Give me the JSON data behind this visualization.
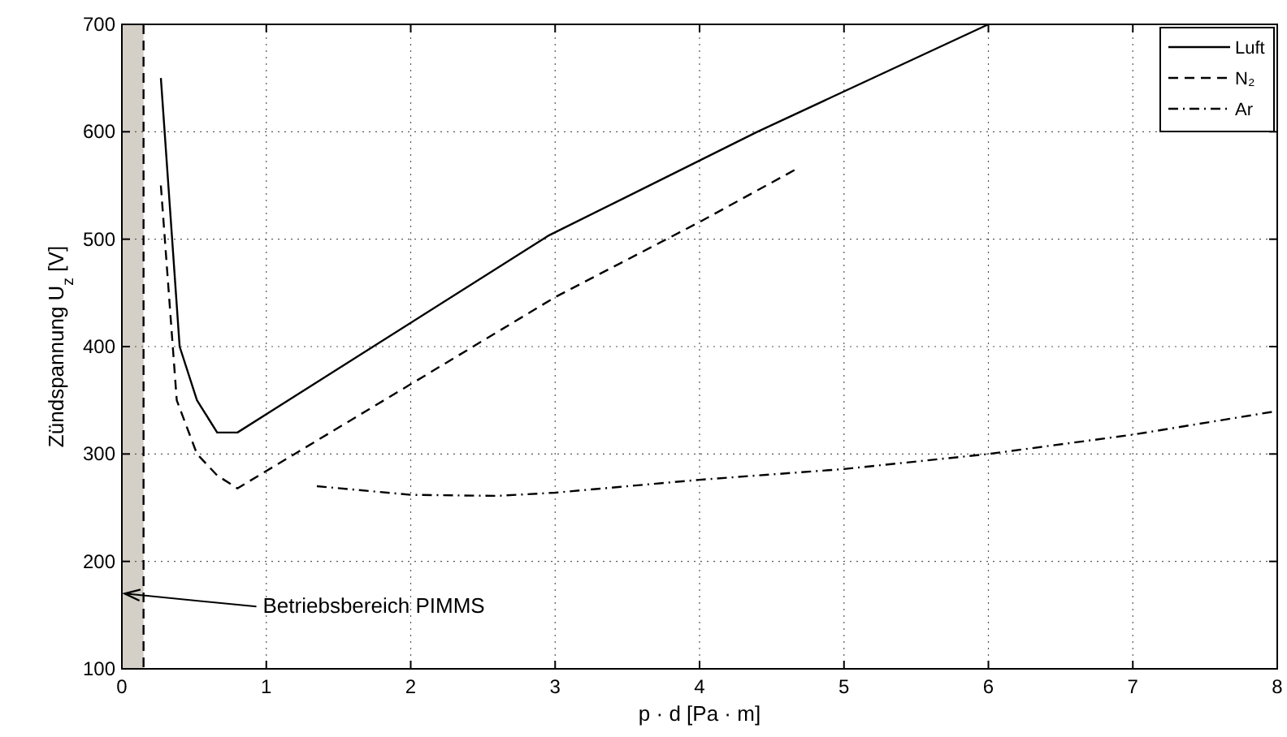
{
  "chart_data": {
    "type": "line",
    "xlabel": "p · d [Pa · m]",
    "ylabel": "Zündspannung U$_{z}$ [V]",
    "xlim": [
      0,
      8
    ],
    "ylim": [
      100,
      700
    ],
    "xticks": [
      0,
      1,
      2,
      3,
      4,
      5,
      6,
      7,
      8
    ],
    "yticks": [
      100,
      200,
      300,
      400,
      500,
      600,
      700
    ],
    "grid": true,
    "legend": "top right",
    "marker": "none",
    "series": [
      {
        "name": "Luft",
        "color": "#000000",
        "line_style": "solid",
        "x": [
          0.27,
          0.4,
          0.52,
          0.66,
          0.8,
          2.95,
          4.4,
          6
        ],
        "values": [
          650,
          400,
          350,
          320,
          320,
          503,
          600,
          700
        ]
      },
      {
        "name": "N₂",
        "color": "#000000",
        "line_style": "dashed",
        "x": [
          0.27,
          0.38,
          0.52,
          0.66,
          0.8,
          2,
          3,
          4,
          4.68
        ],
        "values": [
          550,
          350,
          300,
          280,
          268,
          365,
          446,
          516,
          566
        ]
      },
      {
        "name": "Ar",
        "color": "#000000",
        "line_style": "dashdot",
        "x": [
          1.35,
          2,
          2.6,
          3,
          4,
          5,
          6,
          7,
          8
        ],
        "values": [
          270,
          262,
          261,
          264,
          276,
          286,
          300,
          318,
          340
        ]
      }
    ],
    "bands": [
      {
        "axis": "x",
        "from": 0,
        "to": 0.15,
        "color": "#d4d0c8"
      }
    ],
    "ref_lines": [
      {
        "axis": "x",
        "value": 0.15,
        "line_style": "dashed",
        "color": "#000000"
      }
    ],
    "annotations": [
      {
        "text": "Betriebsbereich PIMMS",
        "x": 0.02,
        "y": 170
      }
    ]
  }
}
